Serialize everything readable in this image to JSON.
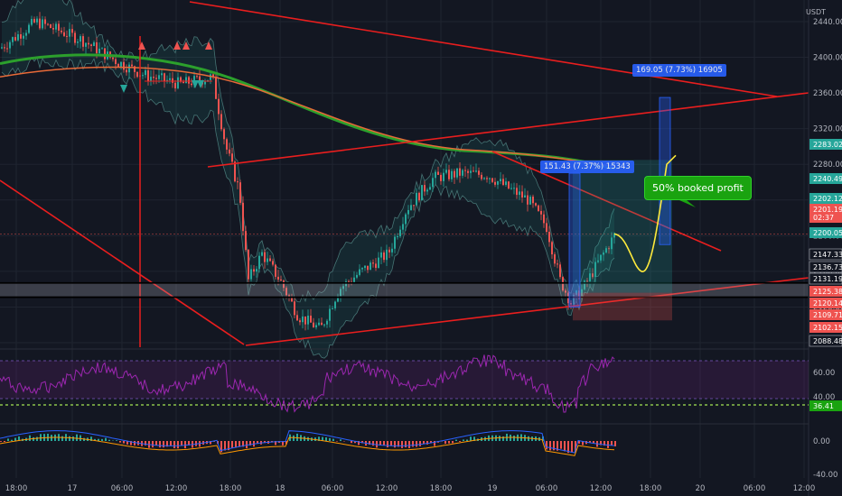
{
  "window": {
    "unit_label": "USDT"
  },
  "colors": {
    "background": "#131722",
    "grid": "#1f2430",
    "up": "#26a69a",
    "down": "#ef5350",
    "trendline": "#e91e1e",
    "ma_green": "#2ca02c",
    "ma_orange": "#e86a38",
    "rsi": "#9c27b0",
    "measure": "#2962ff",
    "profit": "#1aa310",
    "forecast": "#ffeb3b"
  },
  "price_axis": {
    "ticks": [
      "2440.00",
      "2400.00",
      "2360.00",
      "2320.00",
      "2280.00",
      "2240.00",
      "2200.00",
      "2160.00",
      "2120.00",
      "2080.00"
    ],
    "tags": [
      {
        "value": "2283.02",
        "color": "#26a69a"
      },
      {
        "value": "2240.49",
        "color": "#26a69a"
      },
      {
        "value": "2202.12",
        "color": "#26a69a"
      },
      {
        "value": "2201.19",
        "color": "#ef5350"
      },
      {
        "value": "02:37",
        "color": "#ef5350"
      },
      {
        "value": "2200.05",
        "color": "#26a69a"
      },
      {
        "value": "2147.33",
        "color": "#131722"
      },
      {
        "value": "2136.73",
        "color": "#131722"
      },
      {
        "value": "2131.19",
        "color": "#131722"
      },
      {
        "value": "2125.38",
        "color": "#ef5350"
      },
      {
        "value": "2120.14",
        "color": "#ef5350"
      },
      {
        "value": "2109.71",
        "color": "#ef5350"
      },
      {
        "value": "2102.15",
        "color": "#ef5350"
      },
      {
        "value": "2088.48",
        "color": "#131722"
      }
    ],
    "lower_ticks": [
      "60.00",
      "40.00",
      "0.00",
      "-40.00"
    ],
    "rsi_tag": "36.41"
  },
  "time_axis": {
    "ticks": [
      "18:00",
      "17",
      "06:00",
      "12:00",
      "18:00",
      "18",
      "06:00",
      "12:00",
      "18:00",
      "19",
      "06:00",
      "12:00",
      "18:00",
      "20",
      "06:00",
      "12:00"
    ]
  },
  "annotations": {
    "measure_left": "151.43 (7.37%) 15343",
    "measure_right": "169.05 (7.73%) 16905",
    "profit_callout": "50% booked profit"
  }
}
